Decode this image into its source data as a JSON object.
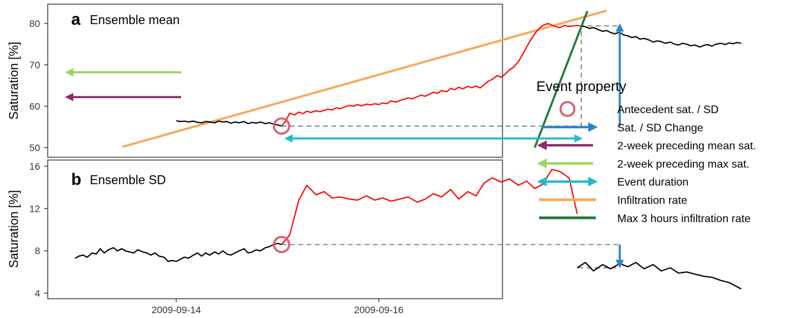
{
  "chart_data": {
    "type": "line",
    "x_ticks": [
      "2009-09-14",
      "2009-09-16"
    ],
    "panels": [
      {
        "id": "a",
        "letter": "a",
        "title": "Ensemble mean",
        "ylabel": "Saturation [%]",
        "ylim": [
          48.7,
          82.3
        ],
        "yticks": [
          50,
          60,
          70,
          80
        ],
        "series": [
          {
            "color": "#000000",
            "x": [
              0,
              0.04,
              0.08,
              0.12,
              0.17,
              0.21,
              0.25,
              0.29,
              0.33,
              0.38,
              0.42,
              0.46,
              0.5,
              0.54,
              0.58,
              0.62,
              0.67,
              0.71,
              0.75,
              0.79,
              0.83,
              0.88,
              0.92,
              0.96,
              1.0,
              1.04
            ],
            "y": [
              56.5,
              56.3,
              56.4,
              56.2,
              56.4,
              56.1,
              56.0,
              56.3,
              56.2,
              56.0,
              56.4,
              56.2,
              56.3,
              55.9,
              56.2,
              56.0,
              56.3,
              55.8,
              56.1,
              55.9,
              56.2,
              55.8,
              56.0,
              55.7,
              55.5,
              55.2
            ]
          },
          {
            "color": "#ff0000",
            "x": [
              1.04,
              1.08,
              1.12,
              1.17,
              1.21,
              1.25,
              1.29,
              1.33,
              1.38,
              1.42,
              1.46,
              1.5,
              1.54,
              1.58,
              1.62,
              1.67,
              1.71,
              1.75,
              1.79,
              1.83,
              1.88,
              1.92,
              1.96,
              2.0,
              2.04,
              2.08,
              2.12,
              2.17,
              2.21,
              2.25,
              2.29,
              2.33,
              2.38,
              2.42,
              2.46,
              2.5,
              2.54,
              2.58,
              2.62,
              2.67,
              2.71,
              2.75,
              2.79,
              2.83,
              2.88,
              2.92,
              2.96,
              3.0,
              3.04,
              3.08,
              3.12,
              3.17,
              3.21,
              3.25,
              3.29,
              3.33,
              3.38,
              3.42,
              3.46,
              3.5,
              3.54,
              3.58,
              3.62,
              3.67,
              3.71,
              3.75,
              3.79,
              3.83,
              3.88,
              3.92,
              3.96,
              4.0
            ],
            "y": [
              55.2,
              56.4,
              58.3,
              57.9,
              58.6,
              58.2,
              58.8,
              58.5,
              58.9,
              58.7,
              59.0,
              59.3,
              59.1,
              59.6,
              59.4,
              59.9,
              60.2,
              60.0,
              60.4,
              60.1,
              60.5,
              60.3,
              60.6,
              60.4,
              60.8,
              60.6,
              61.3,
              61.0,
              61.4,
              61.7,
              62.0,
              61.8,
              62.3,
              62.7,
              62.4,
              62.9,
              63.4,
              63.1,
              63.8,
              63.5,
              64.3,
              64.0,
              64.6,
              64.2,
              64.8,
              64.5,
              64.9,
              64.4,
              65.2,
              66.0,
              66.5,
              67.4,
              67.0,
              67.8,
              68.8,
              69.4,
              70.8,
              72.5,
              74.3,
              76.0,
              77.5,
              78.7,
              79.5,
              80.0,
              79.6,
              79.2,
              79.0,
              79.5,
              79.3,
              79.4,
              79.5,
              79.4
            ]
          },
          {
            "color": "#000000",
            "x": [
              4.0,
              4.04,
              4.08,
              4.12,
              4.17,
              4.21,
              4.25,
              4.29,
              4.33,
              4.38,
              4.42,
              4.46,
              4.5,
              4.54,
              4.58,
              4.62,
              4.67,
              4.71,
              4.75,
              4.79,
              4.83,
              4.88,
              4.92,
              4.96,
              5.0,
              5.04,
              5.08,
              5.12,
              5.17,
              5.21,
              5.25,
              5.29,
              5.33,
              5.38,
              5.42,
              5.46,
              5.5,
              5.54,
              5.58
            ],
            "y": [
              79.4,
              79.2,
              78.8,
              79.0,
              78.5,
              78.1,
              78.3,
              77.8,
              77.5,
              77.9,
              77.2,
              77.0,
              76.6,
              76.8,
              76.2,
              76.4,
              76.0,
              75.5,
              75.8,
              75.6,
              75.2,
              75.5,
              75.0,
              74.8,
              75.2,
              75.0,
              74.6,
              74.8,
              74.3,
              74.7,
              74.9,
              74.5,
              75.0,
              75.2,
              74.9,
              75.3,
              75.1,
              75.4,
              75.2
            ]
          }
        ],
        "circle": {
          "x": 1.04,
          "y": 55.2
        },
        "infiltration_line": {
          "x": [
            -0.53,
            4.25
          ],
          "y": [
            50.2,
            83.1
          ]
        },
        "max3h_line": {
          "x": [
            3.54,
            4.06
          ],
          "y": [
            50.0,
            83.0
          ]
        },
        "mean_sat_arrow_y": 62.2,
        "max_sat_arrow_y": 68.2,
        "event_start_x": 1.04,
        "event_end_x": 4.0,
        "duration_arrow_y": 52.2,
        "dashed_path": [
          [
            1.04,
            55.2
          ],
          [
            4.0,
            55.2
          ],
          [
            4.0,
            79.4
          ],
          [
            4.38,
            79.4
          ]
        ],
        "change_arrow": {
          "x": 4.38,
          "y_from": 55.2,
          "y_to": 79.7
        }
      },
      {
        "id": "b",
        "letter": "b",
        "title": "Ensemble SD",
        "ylabel": "Saturation [%]",
        "ylim": [
          3.6,
          16.3
        ],
        "yticks": [
          4,
          8,
          12,
          16
        ],
        "series": [
          {
            "color": "#000000",
            "x": [
              -1.0,
              -0.96,
              -0.92,
              -0.88,
              -0.83,
              -0.79,
              -0.75,
              -0.71,
              -0.67,
              -0.62,
              -0.58,
              -0.54,
              -0.5,
              -0.46,
              -0.42,
              -0.38,
              -0.33,
              -0.29,
              -0.25,
              -0.21,
              -0.17,
              -0.12,
              -0.08,
              -0.04,
              0.0,
              0.04,
              0.08,
              0.12,
              0.17,
              0.21,
              0.25,
              0.29,
              0.33,
              0.38,
              0.42,
              0.46,
              0.5,
              0.54,
              0.58,
              0.62,
              0.67,
              0.71,
              0.75,
              0.79,
              0.83,
              0.88,
              0.92,
              0.96,
              1.0,
              1.04
            ],
            "y": [
              7.3,
              7.5,
              7.6,
              7.4,
              7.8,
              7.7,
              8.2,
              7.8,
              8.1,
              8.3,
              8.0,
              8.2,
              8.0,
              7.9,
              7.8,
              8.1,
              7.9,
              7.8,
              7.6,
              7.8,
              7.5,
              7.4,
              7.0,
              7.1,
              7.0,
              7.2,
              7.4,
              7.3,
              7.6,
              7.8,
              7.5,
              7.8,
              7.6,
              7.9,
              7.7,
              8.0,
              7.7,
              7.6,
              7.8,
              8.0,
              8.2,
              7.8,
              7.9,
              8.1,
              8.0,
              8.3,
              8.4,
              8.6,
              8.7,
              8.6
            ]
          },
          {
            "color": "#ff0000",
            "x": [
              1.04,
              1.12,
              1.21,
              1.29,
              1.38,
              1.46,
              1.54,
              1.62,
              1.71,
              1.79,
              1.88,
              1.96,
              2.04,
              2.12,
              2.21,
              2.29,
              2.38,
              2.46,
              2.54,
              2.62,
              2.71,
              2.79,
              2.88,
              2.96,
              3.04,
              3.12,
              3.21,
              3.29,
              3.38,
              3.46,
              3.54,
              3.62,
              3.71,
              3.79,
              3.88,
              3.96
            ],
            "y": [
              8.6,
              9.5,
              12.8,
              14.2,
              13.3,
              13.6,
              13.0,
              13.1,
              12.9,
              12.8,
              13.2,
              12.8,
              13.0,
              12.7,
              12.9,
              13.1,
              12.6,
              12.9,
              13.4,
              13.1,
              13.8,
              12.9,
              13.6,
              13.2,
              14.4,
              14.9,
              14.5,
              14.8,
              14.2,
              14.6,
              13.9,
              14.3,
              15.7,
              15.5,
              14.9,
              11.5
            ]
          },
          {
            "color": "#000000",
            "x": [
              3.96,
              4.04,
              4.12,
              4.21,
              4.29,
              4.38,
              4.46,
              4.54,
              4.62,
              4.71,
              4.79,
              4.88,
              4.96,
              5.04,
              5.12,
              5.21,
              5.29,
              5.38,
              5.46,
              5.54,
              5.58
            ],
            "y": [
              6.4,
              6.9,
              6.1,
              6.7,
              6.3,
              6.8,
              6.5,
              6.9,
              6.3,
              6.7,
              6.1,
              6.4,
              5.9,
              6.0,
              5.8,
              5.6,
              5.5,
              5.2,
              5.0,
              4.6,
              4.4
            ]
          }
        ],
        "circle": {
          "x": 1.04,
          "y": 8.6
        },
        "dashed_path": [
          [
            1.04,
            8.6
          ],
          [
            4.38,
            8.6
          ],
          [
            4.38,
            6.4
          ],
          [
            3.96,
            6.4
          ]
        ],
        "change_arrow": {
          "x": 4.38,
          "y_from": 8.6,
          "y_to": 6.5
        }
      }
    ],
    "legend": {
      "title": "Event property",
      "placement": "right",
      "entries": [
        {
          "label": "Antecedent sat. / SD",
          "kind": "circle",
          "color": "#e05a6e"
        },
        {
          "label": "Sat. / SD Change",
          "kind": "arrow-right",
          "color": "#2a86c8"
        },
        {
          "label": "2-week preceding mean sat.",
          "kind": "arrow-left",
          "color": "#8b2a6a"
        },
        {
          "label": "2-week preceding max sat.",
          "kind": "arrow-left",
          "color": "#9bd45a"
        },
        {
          "label": "Event duration",
          "kind": "arrow-both",
          "color": "#22bcc8"
        },
        {
          "label": "Infiltration rate",
          "kind": "line",
          "color": "#f5aa5a"
        },
        {
          "label": "Max 3 hours infiltration rate",
          "kind": "line",
          "color": "#1e7a3a"
        }
      ]
    },
    "colors": {
      "antecedent": "#e05a6e",
      "change": "#2a86c8",
      "mean_sat": "#8b2a6a",
      "max_sat": "#9bd45a",
      "duration": "#22bcc8",
      "infiltration": "#f5aa5a",
      "max3h": "#1e7a3a",
      "dashed": "#808080"
    }
  }
}
